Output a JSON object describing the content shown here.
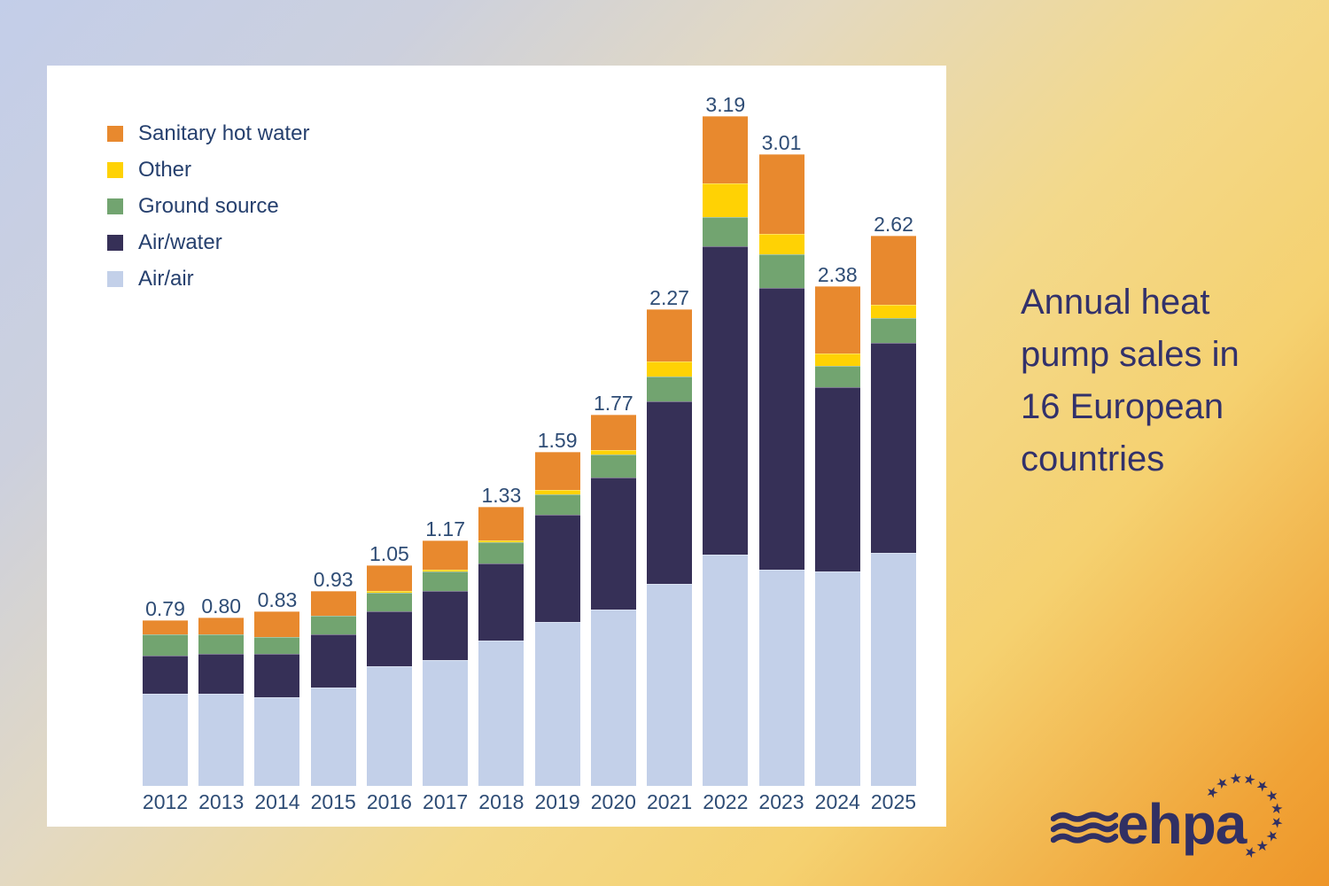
{
  "title": {
    "text": "Annual heat pump sales in 16 European countries"
  },
  "logo": {
    "text": "ehpa"
  },
  "colors": {
    "sanitary_hot_water": "#e8892e",
    "other": "#ffd204",
    "ground_source": "#72a470",
    "air_water": "#363057",
    "air_air": "#c3d0e9",
    "navy_text": "#313063",
    "label_text": "#2e4c75",
    "bg_top_left": "#c3cee9",
    "bg_mid": "#f3d98b",
    "bg_bottom_right": "#ee9629"
  },
  "legend": {
    "items": [
      {
        "label": "Sanitary hot water",
        "color": "#e8892e"
      },
      {
        "label": "Other",
        "color": "#ffd204"
      },
      {
        "label": "Ground source",
        "color": "#72a470"
      },
      {
        "label": "Air/water",
        "color": "#363057"
      },
      {
        "label": "Air/air",
        "color": "#c3d0e9"
      }
    ]
  },
  "chart_data": {
    "type": "bar",
    "stacked": true,
    "title": "Annual heat pump sales in 16 European countries",
    "xlabel": "",
    "ylabel": "",
    "grid": false,
    "legend_position": "top-left",
    "categories": [
      "2012",
      "2013",
      "2014",
      "2015",
      "2016",
      "2017",
      "2018",
      "2019",
      "2020",
      "2021",
      "2022",
      "2023",
      "2024",
      "2025"
    ],
    "series": [
      {
        "name": "Air/air",
        "color": "#c3d0e9",
        "values": [
          0.44,
          0.44,
          0.42,
          0.47,
          0.57,
          0.6,
          0.69,
          0.78,
          0.84,
          0.96,
          1.1,
          1.03,
          1.02,
          1.11
        ]
      },
      {
        "name": "Air/water",
        "color": "#363057",
        "values": [
          0.18,
          0.19,
          0.21,
          0.25,
          0.26,
          0.33,
          0.37,
          0.51,
          0.63,
          0.87,
          1.47,
          1.34,
          0.88,
          1.0
        ]
      },
      {
        "name": "Ground source",
        "color": "#72a470",
        "values": [
          0.1,
          0.09,
          0.08,
          0.09,
          0.09,
          0.09,
          0.1,
          0.1,
          0.11,
          0.12,
          0.14,
          0.16,
          0.1,
          0.12
        ]
      },
      {
        "name": "Other",
        "color": "#ffd204",
        "values": [
          0.0,
          0.0,
          0.0,
          0.0,
          0.01,
          0.01,
          0.01,
          0.02,
          0.02,
          0.07,
          0.16,
          0.1,
          0.06,
          0.06
        ]
      },
      {
        "name": "Sanitary hot water",
        "color": "#e8892e",
        "values": [
          0.07,
          0.08,
          0.12,
          0.12,
          0.12,
          0.14,
          0.16,
          0.18,
          0.17,
          0.25,
          0.32,
          0.38,
          0.32,
          0.33
        ]
      }
    ],
    "totals": [
      "0.79",
      "0.80",
      "0.83",
      "0.93",
      "1.05",
      "1.17",
      "1.33",
      "1.59",
      "1.77",
      "2.27",
      "3.19",
      "3.01",
      "2.38",
      "2.62"
    ]
  }
}
